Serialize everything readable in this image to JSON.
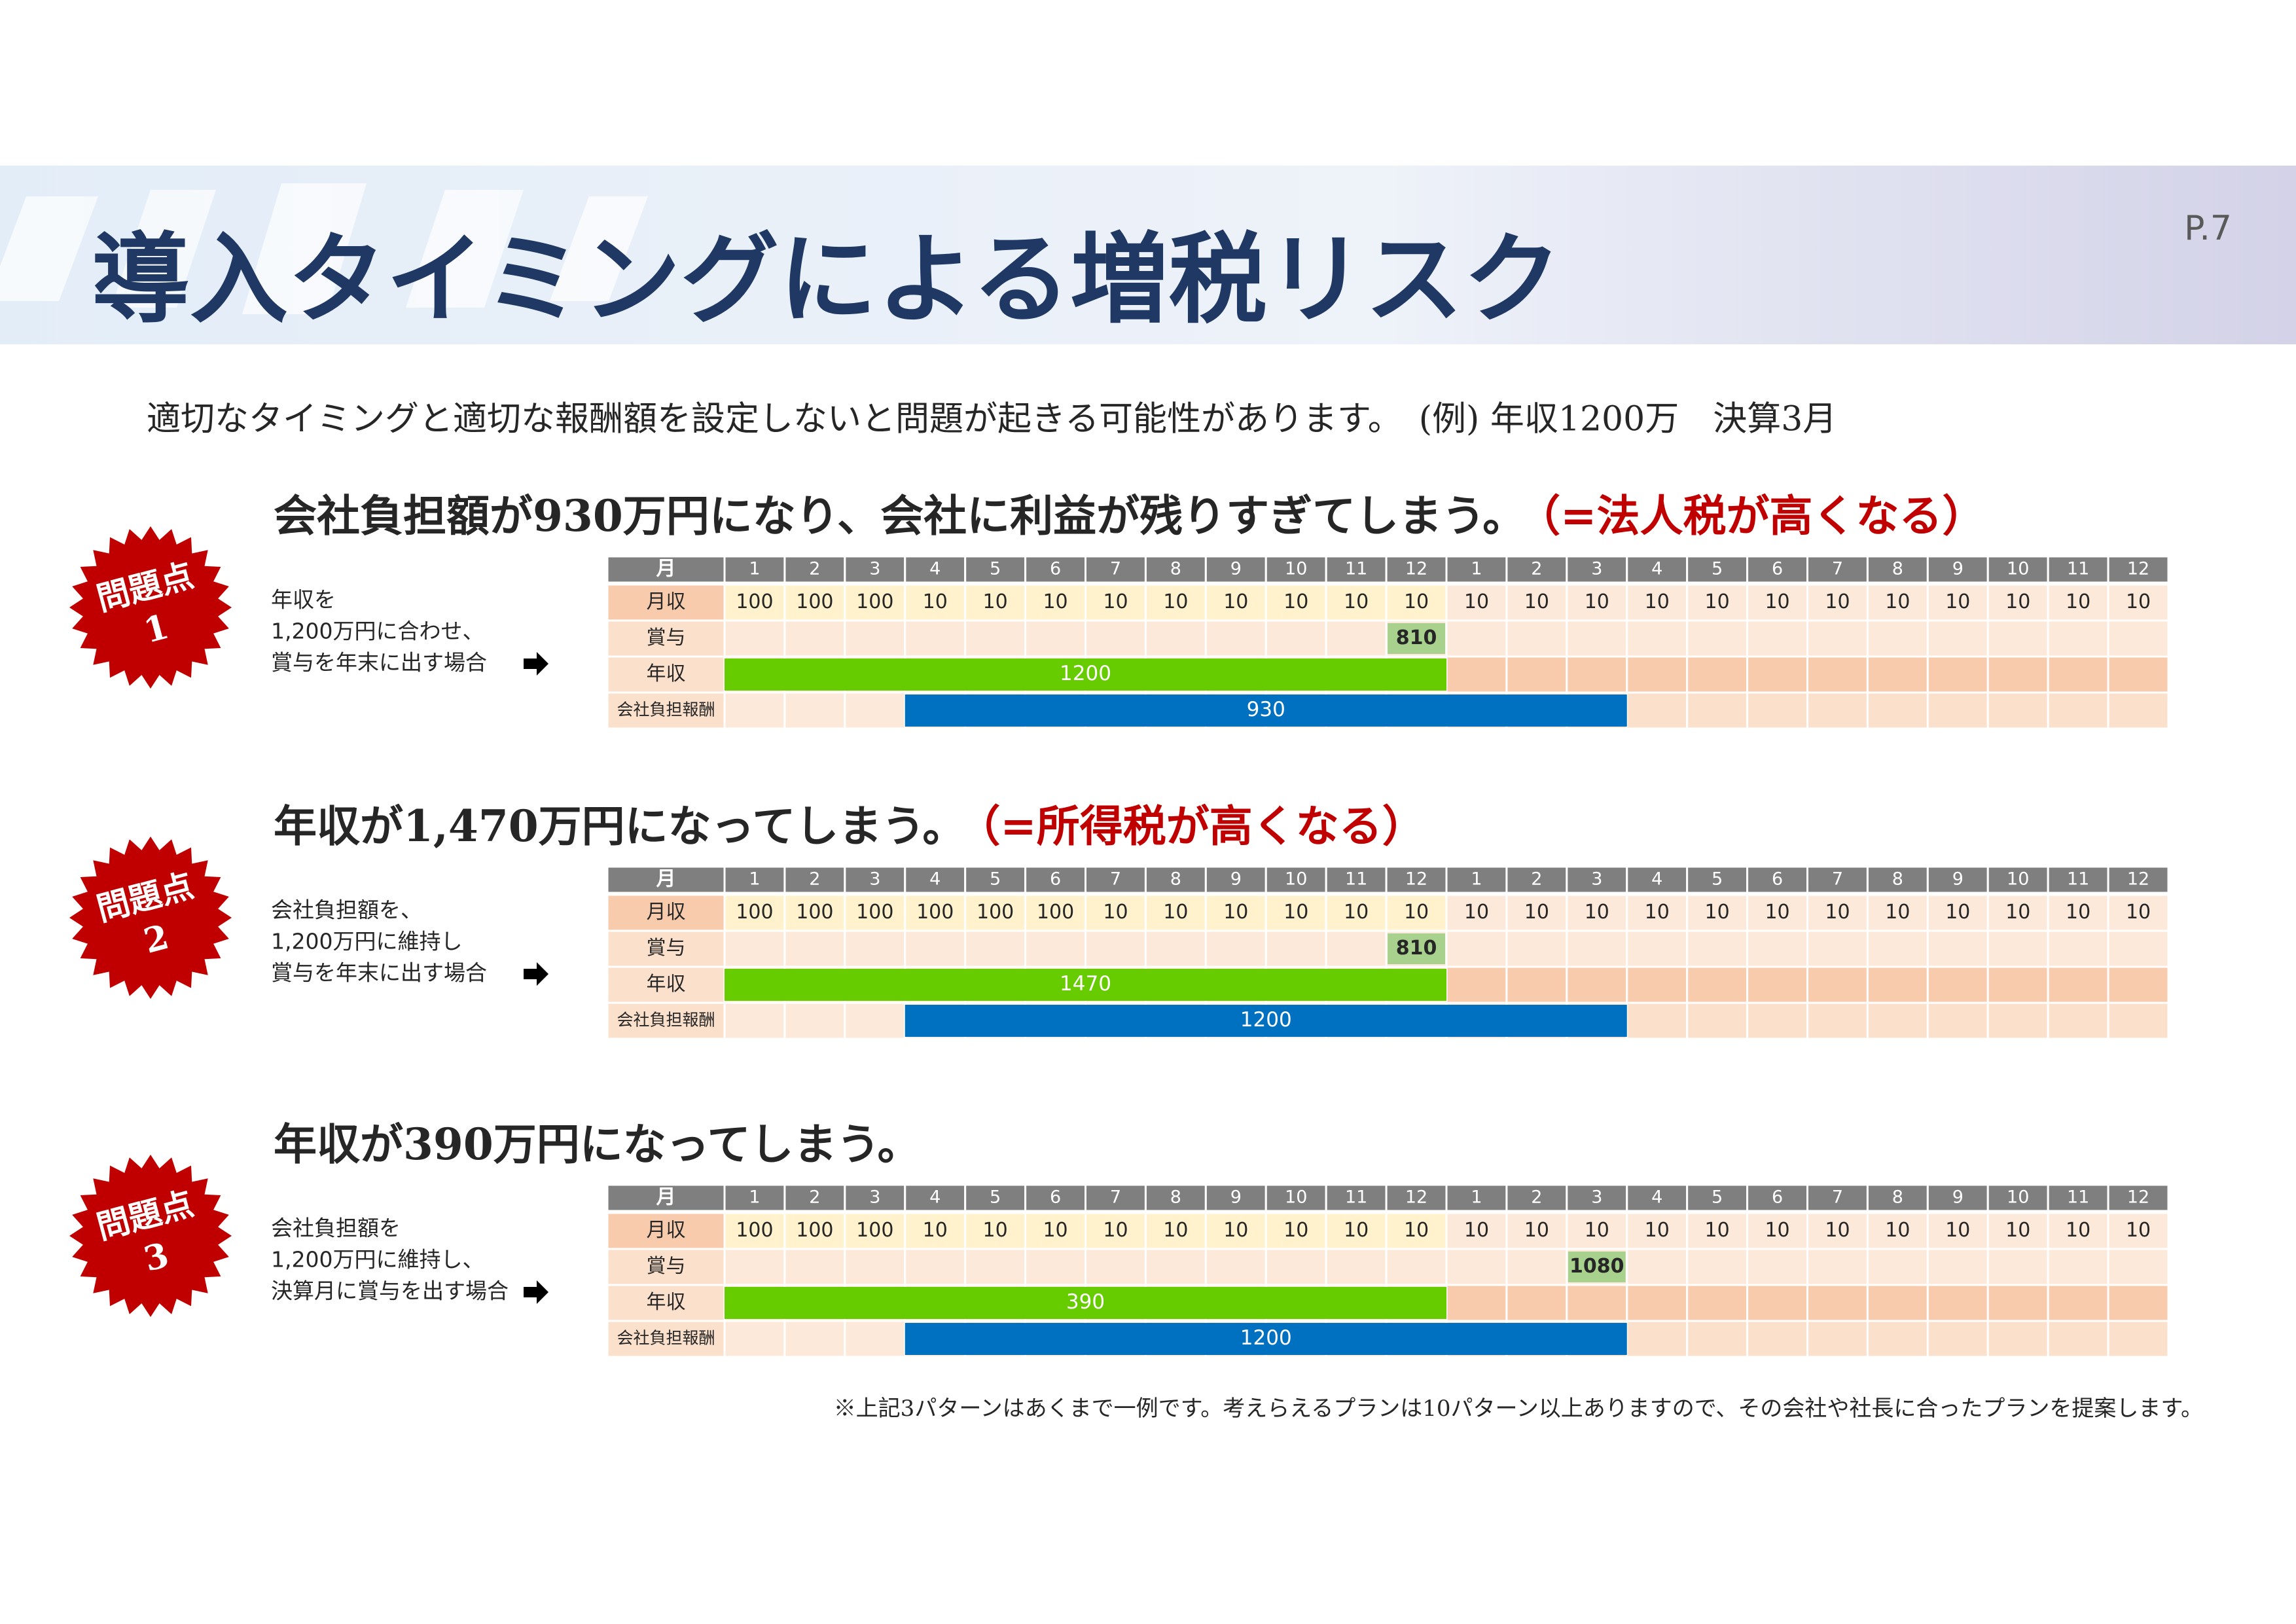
{
  "page": "P.7",
  "title": "導入タイミングによる増税リスク",
  "intro": "適切なタイミングと適切な報酬額を設定しないと問題が起きる可能性があります。　(例) 年収1200万　決算3月",
  "problems": [
    {
      "badge": "問題点",
      "number": "1",
      "heading": "会社負担額が930万円になり、会社に利益が残りすぎてしまう。",
      "heading_note": "（=法人税が高くなる）",
      "desc": [
        "年収を",
        "1,200万円に合わせ、",
        "賞与を年末に出す場合"
      ],
      "table": {
        "header": "月",
        "months": [
          1,
          2,
          3,
          4,
          5,
          6,
          7,
          8,
          9,
          10,
          11,
          12,
          1,
          2,
          3,
          4,
          5,
          6,
          7,
          8,
          9,
          10,
          11,
          12
        ],
        "monthly": {
          "label": "月収",
          "values": [
            100,
            100,
            100,
            10,
            10,
            10,
            10,
            10,
            10,
            10,
            10,
            10,
            10,
            10,
            10,
            10,
            10,
            10,
            10,
            10,
            10,
            10,
            10,
            10
          ]
        },
        "bonus": {
          "label": "賞与",
          "values": [
            null,
            null,
            null,
            null,
            null,
            null,
            null,
            null,
            null,
            null,
            null,
            810,
            null,
            null,
            null,
            null,
            null,
            null,
            null,
            null,
            null,
            null,
            null,
            null
          ]
        },
        "income": {
          "label": "年収",
          "value": 1200,
          "span": [
            0,
            11
          ]
        },
        "company": {
          "label": "会社負担報酬",
          "value": 930,
          "span": [
            3,
            14
          ]
        }
      }
    },
    {
      "badge": "問題点",
      "number": "2",
      "heading": "年収が1,470万円になってしまう。",
      "heading_note": "（=所得税が高くなる）",
      "desc": [
        "会社負担額を、",
        "1,200万円に維持し",
        "賞与を年末に出す場合"
      ],
      "table": {
        "header": "月",
        "months": [
          1,
          2,
          3,
          4,
          5,
          6,
          7,
          8,
          9,
          10,
          11,
          12,
          1,
          2,
          3,
          4,
          5,
          6,
          7,
          8,
          9,
          10,
          11,
          12
        ],
        "monthly": {
          "label": "月収",
          "values": [
            100,
            100,
            100,
            100,
            100,
            100,
            10,
            10,
            10,
            10,
            10,
            10,
            10,
            10,
            10,
            10,
            10,
            10,
            10,
            10,
            10,
            10,
            10,
            10
          ]
        },
        "bonus": {
          "label": "賞与",
          "values": [
            null,
            null,
            null,
            null,
            null,
            null,
            null,
            null,
            null,
            null,
            null,
            810,
            null,
            null,
            null,
            null,
            null,
            null,
            null,
            null,
            null,
            null,
            null,
            null
          ]
        },
        "income": {
          "label": "年収",
          "value": 1470,
          "span": [
            0,
            11
          ]
        },
        "company": {
          "label": "会社負担報酬",
          "value": 1200,
          "span": [
            3,
            14
          ]
        }
      }
    },
    {
      "badge": "問題点",
      "number": "3",
      "heading": "年収が390万円になってしまう。",
      "desc": [
        "会社負担額を",
        "1,200万円に維持し、",
        "決算月に賞与を出す場合"
      ],
      "table": {
        "header": "月",
        "months": [
          1,
          2,
          3,
          4,
          5,
          6,
          7,
          8,
          9,
          10,
          11,
          12,
          1,
          2,
          3,
          4,
          5,
          6,
          7,
          8,
          9,
          10,
          11,
          12
        ],
        "monthly": {
          "label": "月収",
          "values": [
            100,
            100,
            100,
            10,
            10,
            10,
            10,
            10,
            10,
            10,
            10,
            10,
            10,
            10,
            10,
            10,
            10,
            10,
            10,
            10,
            10,
            10,
            10,
            10
          ]
        },
        "bonus": {
          "label": "賞与",
          "values": [
            null,
            null,
            null,
            null,
            null,
            null,
            null,
            null,
            null,
            null,
            null,
            null,
            null,
            null,
            1080,
            null,
            null,
            null,
            null,
            null,
            null,
            null,
            null,
            null
          ]
        },
        "income": {
          "label": "年収",
          "value": 390,
          "span": [
            0,
            11
          ]
        },
        "company": {
          "label": "会社負担報酬",
          "value": 1200,
          "span": [
            3,
            14
          ]
        }
      }
    }
  ],
  "footnote": "※上記3パターンはあくまで一例です。考えらえるプランは10パターン以上ありますので、その会社や社長に合ったプランを提案します。"
}
